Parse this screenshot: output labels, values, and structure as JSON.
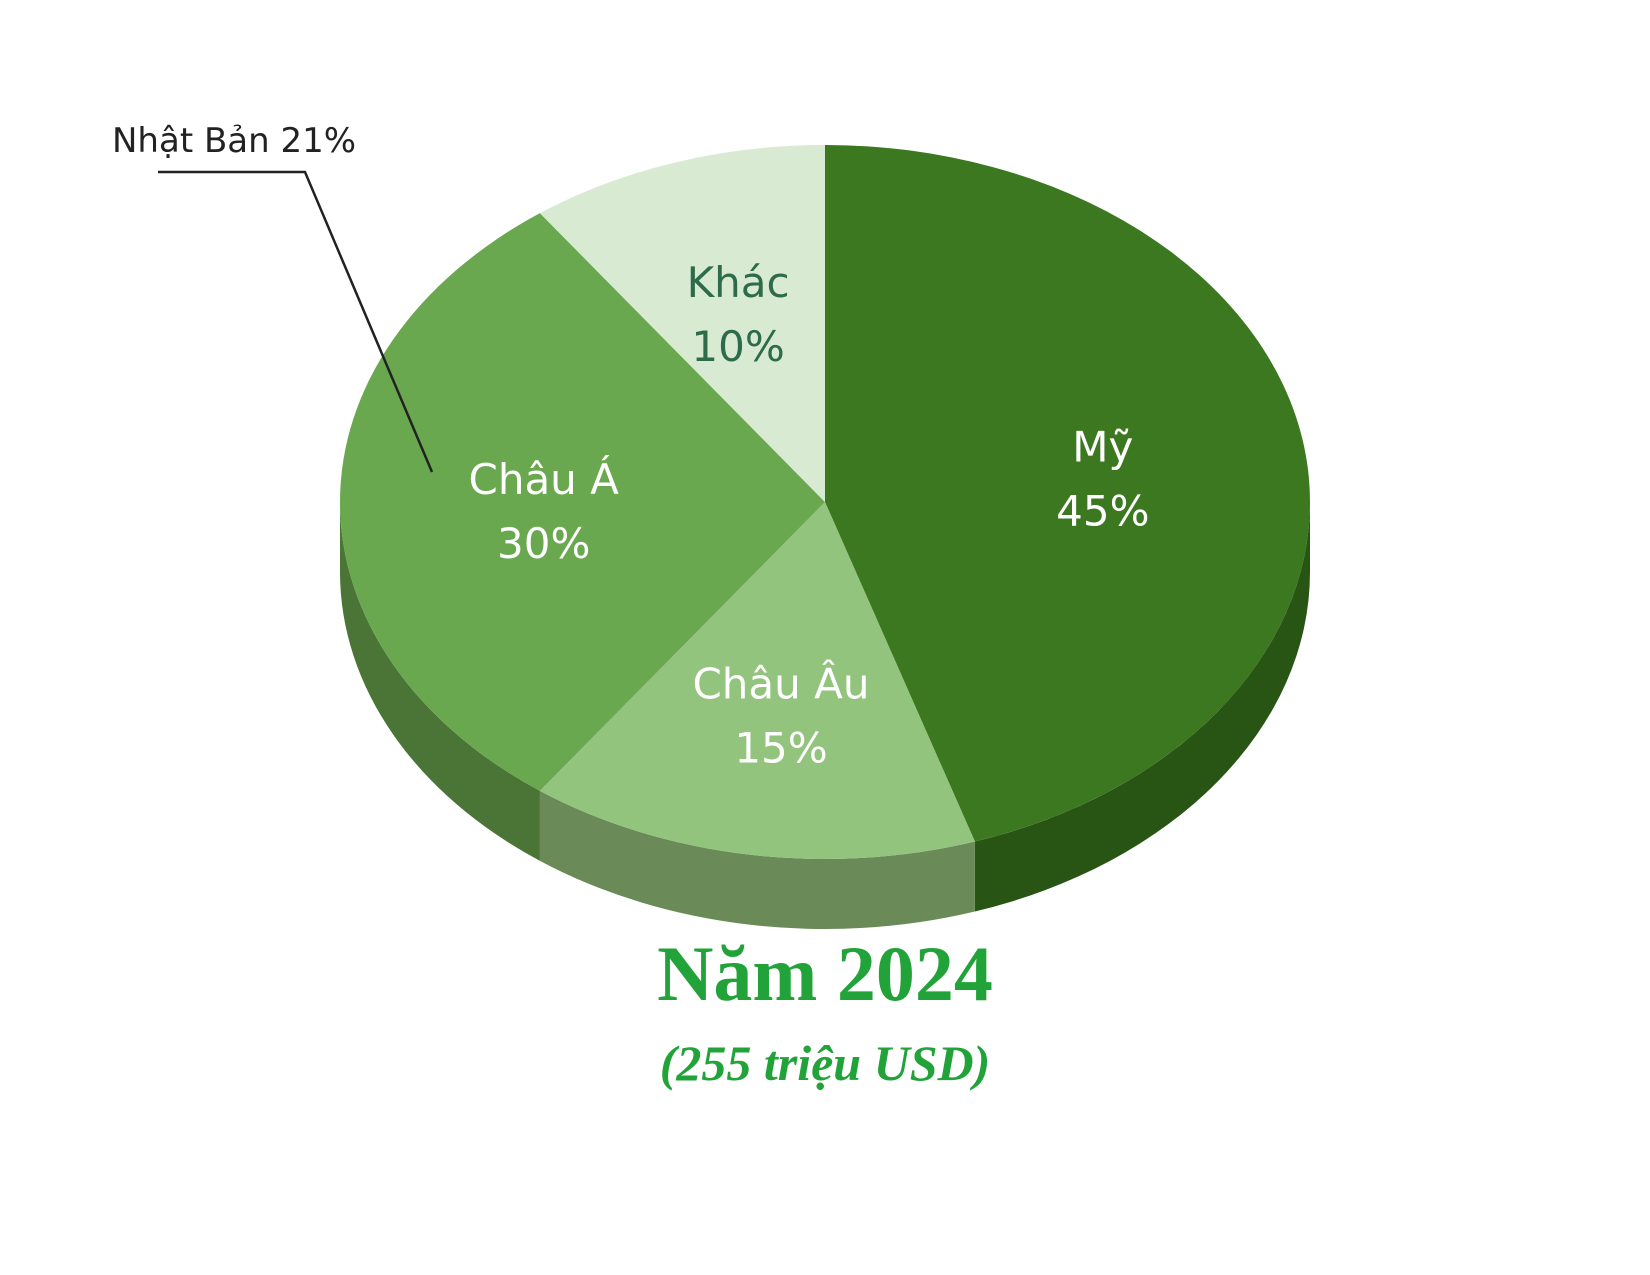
{
  "chart_data": {
    "type": "pie",
    "title": "Năm 2024",
    "subtitle": "(255 triệu USD)",
    "slices": [
      {
        "name": "Mỹ",
        "value": 45,
        "value_label": "45%",
        "color": "#3b781f",
        "side_color": "#285414",
        "text_color": "#ffffff"
      },
      {
        "name": "Châu Âu",
        "value": 15,
        "value_label": "15%",
        "color": "#93c47d",
        "side_color": "#6a8b57",
        "text_color": "#ffffff"
      },
      {
        "name": "Châu Á",
        "value": 30,
        "value_label": "30%",
        "color": "#6aa84f",
        "side_color": "#4a7536",
        "text_color": "#ffffff"
      },
      {
        "name": "Khác",
        "value": 10,
        "value_label": "10%",
        "color": "#d9ead3",
        "side_color": "#b7c8b0",
        "text_color": "#2e6b4a"
      }
    ],
    "annotations": [
      {
        "text": "Nhật Bản 21%",
        "points_to": "Châu Á"
      }
    ],
    "start_angle": "12 o'clock",
    "direction": "clockwise",
    "style": "3d"
  }
}
